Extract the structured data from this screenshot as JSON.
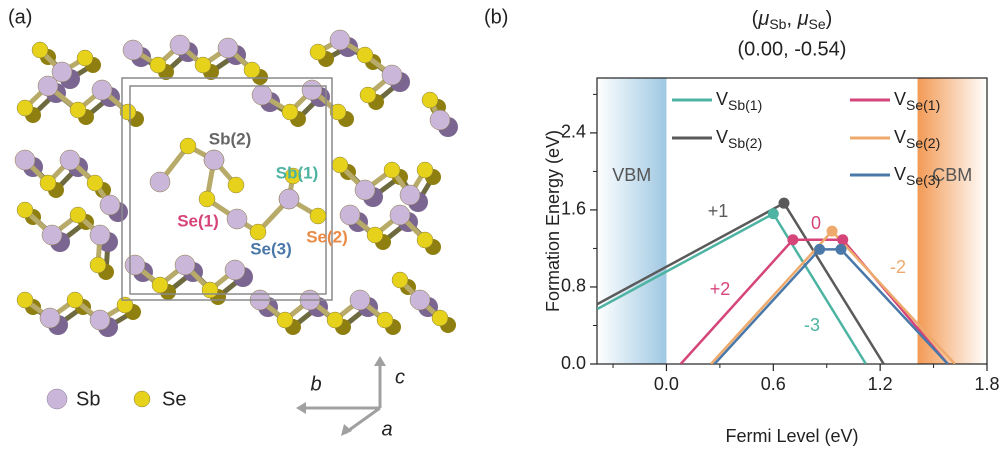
{
  "panel_a": {
    "label": "(a)",
    "site_labels": [
      {
        "text": "Sb(2)",
        "color": "#666666"
      },
      {
        "text": "Sb(1)",
        "color": "#4db3a2"
      },
      {
        "text": "Se(1)",
        "color": "#d6457a"
      },
      {
        "text": "Se(2)",
        "color": "#eb8a45"
      },
      {
        "text": "Se(3)",
        "color": "#4a78a8"
      }
    ],
    "legend": [
      "Sb",
      "Se"
    ],
    "axes": [
      "b",
      "c",
      "a"
    ]
  },
  "chart_data": {
    "type": "line",
    "panel_label": "(b)",
    "title": [
      "(",
      "μ",
      "Sb",
      ",  ",
      "μ",
      "Se",
      ")"
    ],
    "subtitle": "(0.00, -0.54)",
    "x_label": "Fermi Level (eV)",
    "y_label": "Formation Energy (eV)",
    "xlim": [
      -0.39,
      1.8
    ],
    "ylim": [
      0,
      2.97
    ],
    "xticks": [
      {
        "value": 0,
        "label": "0.0"
      },
      {
        "value": 0.6,
        "label": "0.6"
      },
      {
        "value": 1.2,
        "label": "1.2"
      },
      {
        "value": 1.8,
        "label": "1.8"
      }
    ],
    "xminor": [
      -0.3,
      0.3,
      0.9,
      1.5
    ],
    "yticks": [
      {
        "value": 0,
        "label": "0.0"
      },
      {
        "value": 0.8,
        "label": "0.8"
      },
      {
        "value": 1.6,
        "label": "1.6"
      },
      {
        "value": 2.4,
        "label": "2.4"
      }
    ],
    "yminor": [
      0.4,
      1.2,
      2.0,
      2.8
    ],
    "band_edges": {
      "vbm": {
        "value": 0,
        "label": "VBM"
      },
      "cbm": {
        "value": 1.41,
        "label": "CBM"
      }
    },
    "series": [
      {
        "name": "V",
        "subscript": "Sb(1)",
        "color": "#4db3a2",
        "x": [
          -0.39,
          0.6,
          1.12
        ],
        "values": [
          0.57,
          1.56,
          0
        ]
      },
      {
        "name": "V",
        "subscript": "Sb(2)",
        "color": "#5a5a5a",
        "x": [
          -0.39,
          0.66,
          1.22
        ],
        "values": [
          0.62,
          1.67,
          0
        ]
      },
      {
        "name": "V",
        "subscript": "Se(1)",
        "color": "#d6457a",
        "x": [
          0.08,
          0.71,
          0.99,
          1.58
        ],
        "values": [
          0,
          1.29,
          1.29,
          0
        ]
      },
      {
        "name": "V",
        "subscript": "Se(2)",
        "color": "#eeaa6c",
        "x": [
          0.25,
          0.93,
          1.62
        ],
        "values": [
          0,
          1.38,
          0
        ]
      },
      {
        "name": "V",
        "subscript": "Se(3)",
        "color": "#4a78a8",
        "x": [
          0.27,
          0.86,
          0.98,
          1.58
        ],
        "values": [
          0,
          1.19,
          1.19,
          0
        ]
      }
    ],
    "annotations": [
      {
        "text": "+1",
        "color": "#5a5a5a"
      },
      {
        "text": "0",
        "color": "#d6457a"
      },
      {
        "text": "+2",
        "color": "#d6457a"
      },
      {
        "text": "-2",
        "color": "#eeaa6c"
      },
      {
        "text": "-3",
        "color": "#4db3a2"
      }
    ]
  }
}
